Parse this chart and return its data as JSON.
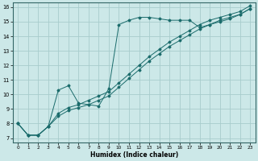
{
  "xlabel": "Humidex (Indice chaleur)",
  "bg_color": "#cce8e8",
  "grid_color": "#a8cccc",
  "line_color": "#1a6b6b",
  "xlim": [
    -0.5,
    23.5
  ],
  "ylim": [
    6.7,
    16.3
  ],
  "x_ticks": [
    0,
    1,
    2,
    3,
    4,
    5,
    6,
    7,
    8,
    9,
    10,
    11,
    12,
    13,
    14,
    15,
    16,
    17,
    18,
    19,
    20,
    21,
    22,
    23
  ],
  "y_ticks": [
    7,
    8,
    9,
    10,
    11,
    12,
    13,
    14,
    15,
    16
  ],
  "series1_x": [
    0,
    1,
    2,
    3,
    4,
    5,
    6,
    7,
    8,
    9,
    10,
    11,
    12,
    13,
    14,
    15,
    16,
    17,
    18,
    19,
    20,
    21,
    22,
    23
  ],
  "series1_y": [
    8.0,
    7.2,
    7.2,
    7.8,
    10.3,
    10.6,
    9.4,
    9.3,
    9.2,
    10.4,
    14.8,
    15.1,
    15.3,
    15.3,
    15.2,
    15.1,
    15.1,
    15.1,
    14.6,
    14.8,
    15.1,
    15.3,
    15.5,
    15.9
  ],
  "series2_x": [
    0,
    1,
    2,
    3,
    4,
    5,
    6,
    7,
    8,
    9,
    10,
    11,
    12,
    13,
    14,
    15,
    16,
    17,
    18,
    19,
    20,
    21,
    22,
    23
  ],
  "series2_y": [
    8.0,
    7.2,
    7.2,
    7.8,
    8.5,
    8.9,
    9.1,
    9.3,
    9.6,
    9.9,
    10.5,
    11.1,
    11.7,
    12.3,
    12.8,
    13.3,
    13.7,
    14.1,
    14.5,
    14.8,
    15.0,
    15.2,
    15.5,
    15.9
  ],
  "series3_x": [
    0,
    1,
    2,
    3,
    4,
    5,
    6,
    7,
    8,
    9,
    10,
    11,
    12,
    13,
    14,
    15,
    16,
    17,
    18,
    19,
    20,
    21,
    22,
    23
  ],
  "series3_y": [
    8.0,
    7.2,
    7.2,
    7.8,
    8.7,
    9.1,
    9.3,
    9.6,
    9.9,
    10.2,
    10.8,
    11.4,
    12.0,
    12.6,
    13.1,
    13.6,
    14.0,
    14.4,
    14.8,
    15.1,
    15.3,
    15.5,
    15.7,
    16.1
  ]
}
